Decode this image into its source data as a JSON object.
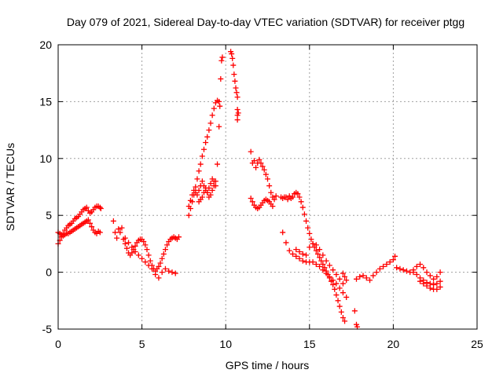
{
  "chart_data": {
    "type": "scatter",
    "title": "Day 079 of 2021, Sidereal Day-to-day VTEC variation (SDTVAR) for receiver ptgg",
    "xlabel": "GPS time / hours",
    "ylabel": "SDTVAR / TECUs",
    "xlim": [
      0,
      25
    ],
    "ylim": [
      -5,
      20
    ],
    "xticks": [
      0,
      5,
      10,
      15,
      20,
      25
    ],
    "yticks": [
      -5,
      0,
      5,
      10,
      15,
      20
    ],
    "grid": true,
    "marker": "plus",
    "color": "#ff0000",
    "series": [
      {
        "name": "ptgg",
        "x": [
          0.0,
          0.1,
          0.2,
          0.3,
          0.4,
          0.5,
          0.6,
          0.7,
          0.8,
          0.9,
          1.0,
          1.1,
          1.2,
          1.3,
          1.4,
          1.5,
          1.6,
          1.7,
          1.8,
          1.9,
          2.0,
          2.1,
          2.2,
          2.3,
          2.4,
          2.5,
          2.55,
          0.0,
          0.1,
          0.2,
          0.3,
          0.4,
          0.5,
          0.6,
          0.7,
          0.8,
          0.9,
          1.0,
          1.1,
          1.2,
          1.3,
          1.4,
          1.5,
          1.6,
          1.7,
          1.8,
          1.9,
          2.0,
          2.1,
          2.2,
          2.3,
          2.4,
          2.5,
          3.3,
          3.4,
          3.5,
          3.6,
          3.7,
          3.8,
          3.9,
          4.0,
          4.1,
          4.2,
          4.3,
          4.4,
          4.5,
          4.6,
          4.7,
          4.8,
          4.9,
          5.0,
          5.1,
          5.2,
          5.3,
          5.4,
          5.5,
          5.6,
          5.7,
          5.8,
          5.9,
          6.0,
          6.1,
          6.2,
          6.3,
          6.4,
          6.5,
          6.6,
          6.7,
          6.8,
          6.9,
          7.0,
          7.1,
          7.2,
          4.0,
          4.2,
          4.4,
          4.6,
          4.8,
          5.0,
          5.2,
          5.4,
          5.6,
          5.8,
          6.0,
          6.2,
          6.4,
          6.6,
          6.8,
          7.0,
          7.8,
          7.9,
          8.0,
          8.1,
          8.2,
          8.3,
          8.4,
          8.5,
          8.6,
          8.7,
          8.8,
          8.9,
          9.0,
          9.1,
          9.2,
          9.3,
          9.4,
          9.5,
          9.6,
          9.65,
          7.8,
          7.9,
          8.0,
          8.1,
          8.2,
          8.3,
          8.4,
          8.5,
          8.6,
          8.7,
          8.8,
          8.9,
          9.0,
          9.1,
          9.2,
          9.3,
          9.4,
          8.4,
          8.5,
          8.6,
          8.7,
          8.8,
          8.9,
          9.0,
          9.1,
          9.2,
          9.3,
          9.4,
          9.5,
          9.6,
          9.7,
          9.75,
          9.8,
          10.3,
          10.35,
          10.4,
          10.45,
          10.5,
          10.55,
          10.6,
          10.65,
          10.7,
          10.7,
          10.7,
          10.7,
          10.75,
          11.5,
          11.6,
          11.7,
          11.8,
          11.9,
          12.0,
          12.1,
          12.2,
          12.3,
          12.4,
          12.5,
          12.6,
          12.7,
          12.8,
          12.9,
          13.0,
          11.5,
          11.6,
          11.7,
          11.8,
          11.9,
          12.0,
          12.1,
          12.2,
          12.3,
          12.4,
          12.5,
          12.6,
          12.7,
          12.8,
          13.3,
          13.4,
          13.5,
          13.6,
          13.7,
          13.8,
          13.9,
          14.0,
          14.1,
          14.2,
          14.3,
          14.4,
          14.5,
          14.6,
          14.7,
          14.8,
          14.9,
          15.0,
          15.1,
          15.2,
          15.3,
          15.4,
          15.5,
          15.6,
          15.7,
          15.8,
          15.9,
          16.0,
          16.1,
          16.2,
          16.3,
          16.4,
          16.5,
          16.6,
          16.7,
          16.8,
          16.9,
          17.0,
          17.1,
          13.4,
          13.6,
          13.8,
          14.0,
          14.2,
          14.4,
          14.6,
          14.8,
          15.0,
          15.2,
          15.4,
          15.6,
          15.8,
          16.0,
          16.2,
          16.4,
          16.6,
          16.8,
          17.0,
          17.2,
          14.2,
          14.4,
          14.6,
          14.8,
          15.0,
          15.2,
          15.4,
          15.6,
          15.8,
          16.0,
          16.2,
          16.4,
          16.6,
          16.8,
          17.0,
          17.0,
          17.1,
          17.2,
          17.7,
          17.8,
          17.85,
          17.8,
          18.0,
          18.2,
          18.4,
          18.6,
          18.8,
          19.0,
          19.2,
          19.4,
          19.6,
          19.8,
          20.0,
          20.1,
          20.2,
          20.4,
          20.6,
          20.8,
          21.0,
          21.2,
          21.4,
          21.6,
          21.8,
          22.0,
          22.2,
          22.4,
          22.6,
          22.8,
          21.2,
          21.4,
          21.6,
          21.8,
          22.0,
          22.2,
          22.4,
          22.6,
          22.8,
          21.6,
          21.8,
          22.0,
          22.2,
          22.4,
          22.6,
          22.8
        ],
        "y": [
          2.5,
          2.8,
          3.1,
          3.4,
          3.7,
          3.9,
          4.1,
          4.2,
          4.3,
          4.5,
          4.7,
          4.8,
          4.9,
          5.1,
          5.3,
          5.5,
          5.6,
          5.7,
          5.4,
          5.2,
          5.3,
          5.5,
          5.7,
          5.8,
          5.8,
          5.7,
          5.6,
          3.5,
          3.4,
          3.3,
          3.2,
          3.3,
          3.4,
          3.4,
          3.5,
          3.6,
          3.7,
          3.8,
          3.9,
          4.0,
          4.1,
          4.2,
          4.3,
          4.4,
          4.5,
          4.6,
          4.3,
          4.0,
          3.7,
          3.5,
          3.4,
          3.6,
          3.5,
          4.5,
          3.5,
          3.0,
          3.8,
          3.5,
          3.9,
          2.9,
          2.5,
          2.1,
          1.7,
          1.5,
          1.7,
          2.0,
          2.3,
          2.6,
          2.8,
          2.9,
          2.9,
          2.7,
          2.4,
          2.0,
          1.5,
          1.0,
          0.6,
          0.3,
          0.1,
          0.3,
          0.5,
          0.8,
          1.2,
          1.6,
          2.0,
          2.4,
          2.7,
          2.9,
          3.0,
          3.1,
          3.0,
          2.9,
          3.1,
          3.0,
          2.6,
          2.2,
          1.8,
          1.5,
          1.2,
          0.9,
          0.6,
          0.3,
          -0.2,
          -0.5,
          0.0,
          0.3,
          0.1,
          0.0,
          -0.1,
          5.0,
          5.6,
          6.2,
          6.8,
          7.5,
          8.2,
          8.9,
          9.5,
          10.2,
          10.8,
          11.4,
          11.9,
          12.5,
          13.1,
          13.8,
          14.4,
          14.9,
          15.1,
          15.0,
          14.6,
          5.8,
          6.3,
          6.8,
          7.2,
          7.0,
          6.8,
          7.2,
          7.6,
          8.0,
          7.6,
          7.2,
          7.0,
          7.4,
          7.8,
          8.2,
          8.0,
          7.6,
          6.2,
          6.4,
          6.6,
          7.0,
          7.4,
          7.0,
          6.6,
          6.8,
          7.2,
          7.6,
          8.0,
          9.5,
          12.8,
          17.0,
          18.6,
          18.9,
          19.4,
          19.2,
          18.8,
          18.2,
          17.4,
          16.8,
          16.2,
          15.8,
          15.4,
          14.3,
          13.8,
          13.4,
          14.0,
          10.6,
          9.6,
          9.8,
          9.2,
          9.6,
          9.9,
          9.6,
          9.3,
          9.0,
          8.6,
          8.2,
          7.6,
          7.0,
          6.6,
          6.4,
          6.7,
          6.5,
          6.2,
          5.9,
          5.7,
          5.6,
          5.7,
          5.9,
          6.1,
          6.3,
          6.4,
          6.3,
          6.2,
          6.0,
          5.8,
          6.6,
          6.5,
          6.6,
          6.6,
          6.4,
          6.7,
          6.5,
          6.6,
          6.9,
          7.0,
          6.9,
          6.6,
          6.2,
          5.7,
          5.1,
          4.5,
          3.9,
          3.4,
          2.9,
          2.5,
          2.2,
          1.9,
          1.6,
          1.3,
          1.0,
          0.7,
          0.4,
          0.1,
          -0.2,
          -0.5,
          -0.8,
          -1.1,
          -1.5,
          -2.0,
          -2.5,
          -3.0,
          -3.5,
          -4.0,
          -4.3,
          3.5,
          2.6,
          1.9,
          1.6,
          1.4,
          1.2,
          1.0,
          0.9,
          0.9,
          0.9,
          0.7,
          0.5,
          0.2,
          -0.1,
          -0.4,
          -0.7,
          -1.0,
          -1.4,
          -1.8,
          -2.2,
          2.0,
          1.8,
          1.6,
          1.5,
          2.2,
          2.5,
          2.4,
          2.0,
          1.5,
          1.0,
          0.6,
          0.2,
          -0.2,
          -0.6,
          -1.0,
          -0.1,
          -0.4,
          -0.7,
          -3.4,
          -4.6,
          -4.8,
          -0.6,
          -0.4,
          -0.3,
          -0.5,
          -0.7,
          -0.3,
          0.0,
          0.3,
          0.5,
          0.7,
          0.9,
          1.1,
          1.4,
          0.4,
          0.3,
          0.2,
          0.1,
          0.0,
          0.2,
          0.5,
          0.7,
          0.4,
          0.0,
          -0.3,
          -0.6,
          -0.4,
          0.0,
          0.0,
          -0.2,
          -0.5,
          -0.7,
          -0.9,
          -1.0,
          -1.1,
          -1.0,
          -0.8,
          -0.8,
          -1.0,
          -1.2,
          -1.4,
          -1.5,
          -1.5,
          -1.3
        ]
      }
    ]
  }
}
